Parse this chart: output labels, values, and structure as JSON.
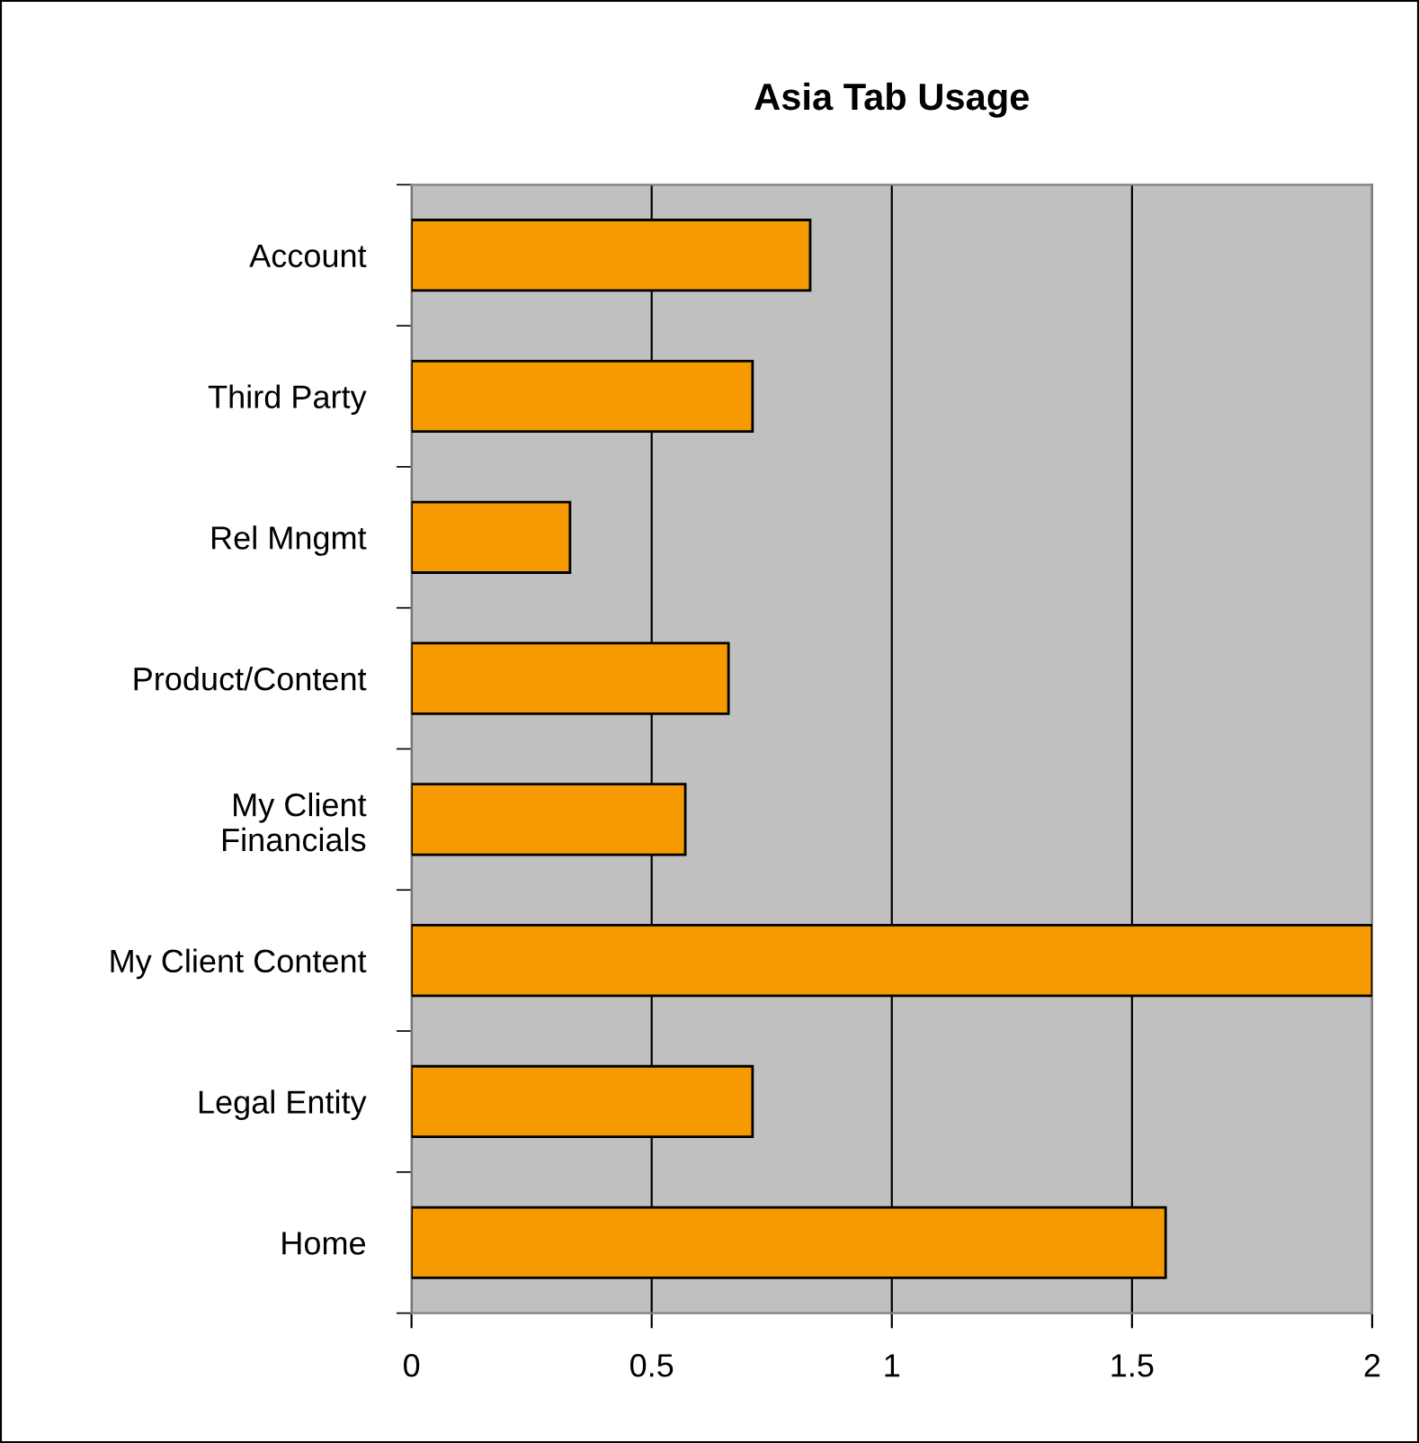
{
  "chart_data": {
    "type": "bar",
    "orientation": "horizontal",
    "title": "Asia Tab Usage",
    "categories": [
      "Account",
      "Third Party",
      "Rel Mngmt",
      "Product/Content",
      "My Client\nFinancials",
      "My Client Content",
      "Legal Entity",
      "Home"
    ],
    "values": [
      0.83,
      0.71,
      0.33,
      0.66,
      0.57,
      2,
      0.71,
      1.57
    ],
    "color": "#f59a00",
    "xlim": [
      0,
      2
    ],
    "xticks": [
      0,
      0.5,
      1,
      1.5,
      2
    ],
    "grid": "x"
  }
}
